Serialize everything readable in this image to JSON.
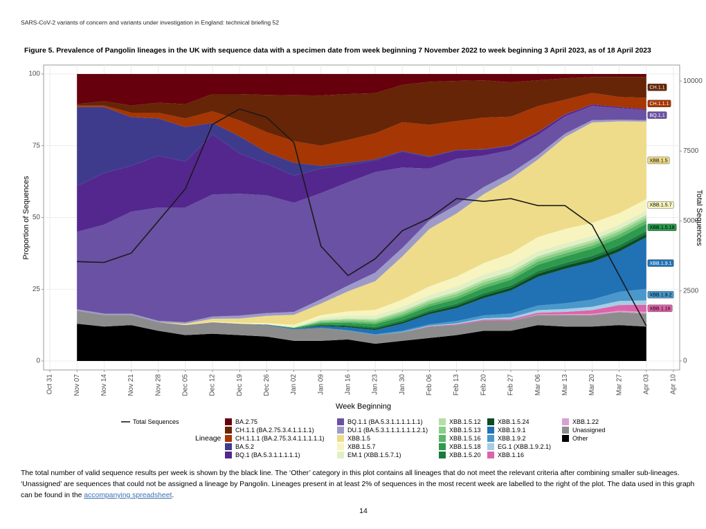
{
  "header": "SARS-CoV-2 variants of concern and variants under investigation in England: technical briefing 52",
  "page_number": "14",
  "caption": {
    "text": "The total number of valid sequence results per week is shown by the black line. The ‘Other’ category in this plot contains all lineages that do not meet the relevant criteria after combining smaller sub-lineages. ‘Unassigned’ are sequences that could not be assigned a lineage by Pangolin. Lineages present in at least 2% of sequences in the most recent week are labelled to the right of the plot. The data used in this graph can be found in the ",
    "link": "accompanying spreadsheet",
    "end": "."
  },
  "chart_data": {
    "type": "area",
    "title": "Figure 5. Prevalence of Pangolin lineages in the UK with sequence data with a specimen date from week beginning 7 November 2022 to week beginning 3 April 2023, as of 18 April 2023",
    "x_label": "Week Beginning",
    "y_label": "Proportion of Sequences",
    "y2_label": "Total Sequences",
    "legend_title": "Lineage",
    "grid": true,
    "categories": [
      "Oct 31",
      "Nov 07",
      "Nov 14",
      "Nov 21",
      "Nov 28",
      "Dec 05",
      "Dec 12",
      "Dec 19",
      "Dec 26",
      "Jan 02",
      "Jan 09",
      "Jan 16",
      "Jan 23",
      "Jan 30",
      "Feb 06",
      "Feb 13",
      "Feb 20",
      "Feb 27",
      "Mar 06",
      "Mar 13",
      "Mar 20",
      "Mar 27",
      "Apr 03",
      "Apr 10"
    ],
    "ylim": [
      0,
      100
    ],
    "yticks": [
      0,
      25,
      50,
      75,
      100
    ],
    "y2lim": [
      0,
      10250
    ],
    "y2ticks": [
      0,
      2500,
      5000,
      7500,
      10000
    ],
    "total_line": {
      "name": "Total Sequences",
      "color": "#1a1a1a",
      "axis": "y2",
      "values": [
        null,
        3550,
        3520,
        3850,
        5000,
        6150,
        8450,
        9000,
        8700,
        7800,
        4100,
        3050,
        3650,
        4650,
        5100,
        5800,
        5700,
        5800,
        5550,
        5550,
        4850,
        3050,
        1250,
        null
      ]
    },
    "series": [
      {
        "name": "BA.2.75",
        "color": "#67000d",
        "values": [
          null,
          10.5,
          9.5,
          11,
          10,
          10.5,
          7,
          7,
          7.3,
          7.4,
          7.5,
          7,
          6.7,
          3.8,
          2.7,
          2.4,
          2.2,
          2.9,
          2.2,
          1.5,
          1,
          1,
          1,
          null
        ]
      },
      {
        "name": "CH.1.1 (BA.2.75.3.4.1.1.1.1)",
        "color": "#662506",
        "end_label": "CH.1.1",
        "values": [
          null,
          0.5,
          1.5,
          2.5,
          3.5,
          5,
          6,
          9.2,
          13,
          16,
          17.5,
          16,
          14,
          13,
          15,
          14,
          13,
          12,
          9,
          7.5,
          5.6,
          7,
          7.3,
          null
        ]
      },
      {
        "name": "CH.1.1.1 (BA.2.75.3.4.1.1.1.1.1)",
        "color": "#a63603",
        "end_label": "CH.1.1.1",
        "values": [
          null,
          0.5,
          0.5,
          1.5,
          2,
          3,
          4,
          5.5,
          7,
          7.5,
          7,
          8,
          9,
          10,
          11,
          10,
          11,
          10,
          9,
          5,
          4,
          3.5,
          4,
          null
        ]
      },
      {
        "name": "BA.5.2",
        "color": "#3f3b8c",
        "values": [
          null,
          27.5,
          23,
          17,
          13,
          12,
          4,
          6,
          4,
          4.5,
          1,
          0.7,
          0.5,
          0.3,
          0.3,
          0.2,
          0.2,
          0.1,
          0.1,
          0.1,
          0,
          0,
          0,
          null
        ]
      },
      {
        "name": "BQ.1 (BA.5.3.1.1.1.1.1)",
        "color": "#54278f",
        "values": [
          null,
          16,
          18,
          16,
          18,
          16,
          21,
          14,
          11,
          9.5,
          8.5,
          6,
          4,
          5.5,
          4,
          3,
          2,
          1.5,
          1,
          0.7,
          0.5,
          0.4,
          0.3,
          null
        ]
      },
      {
        "name": "BQ.1.1 (BA.5.3.1.1.1.1.1.1)",
        "color": "#6a51a3",
        "end_label": "BQ.1.1",
        "values": [
          null,
          27,
          31,
          35.5,
          39.5,
          40,
          42.5,
          42.5,
          41,
          38,
          37,
          36,
          35,
          28,
          18,
          16,
          11,
          8,
          7,
          6,
          5,
          4,
          3.5,
          null
        ]
      },
      {
        "name": "DU.1 (BA.5.3.1.1.1.1.1.1.2.1)",
        "color": "#9e9ac8",
        "values": [
          null,
          0.5,
          0.5,
          0.5,
          0.5,
          0.5,
          0.8,
          1,
          1,
          1,
          1.5,
          2,
          3,
          3,
          3,
          3,
          2.5,
          2,
          1.5,
          1.2,
          0.8,
          0.6,
          0.5,
          null
        ]
      },
      {
        "name": "XBB.1.5",
        "color": "#eedc8a",
        "end_label": "XBB.1.5",
        "values": [
          null,
          0,
          0,
          0,
          0,
          0.5,
          1,
          1.5,
          2.5,
          3.5,
          4,
          7,
          10,
          15,
          20,
          22,
          24,
          26,
          27,
          32,
          35,
          32,
          27,
          null
        ]
      },
      {
        "name": "XBB.1.5.7",
        "color": "#f7f4bf",
        "end_label": "XBB.1.5.7",
        "values": [
          null,
          0,
          0,
          0,
          0,
          0,
          0.2,
          0.3,
          0.5,
          0.5,
          1,
          1.5,
          2,
          2.5,
          3,
          3.5,
          4,
          4.5,
          5,
          5,
          4.5,
          4,
          4,
          null
        ]
      },
      {
        "name": "EM.1 (XBB.1.5.7.1)",
        "color": "#e1f0c4",
        "values": [
          null,
          0,
          0,
          0,
          0,
          0,
          0,
          0,
          0,
          0.5,
          0.7,
          1,
          1.2,
          1.4,
          1.6,
          1.7,
          1.8,
          1.8,
          1.7,
          1.6,
          1.5,
          1.5,
          1.5,
          null
        ]
      },
      {
        "name": "XBB.1.5.12",
        "color": "#b5dfa5",
        "values": [
          null,
          0,
          0,
          0,
          0,
          0,
          0,
          0,
          0,
          0,
          0.3,
          0.4,
          0.5,
          0.6,
          0.7,
          0.8,
          0.9,
          0.9,
          0.9,
          0.9,
          0.9,
          0.9,
          0.9,
          null
        ]
      },
      {
        "name": "XBB.1.5.13",
        "color": "#8acf86",
        "values": [
          null,
          0,
          0,
          0,
          0,
          0,
          0,
          0,
          0,
          0,
          0.5,
          0.6,
          0.7,
          0.8,
          0.9,
          1,
          1,
          1,
          1,
          1,
          1,
          1,
          1,
          null
        ]
      },
      {
        "name": "XBB.1.5.16",
        "color": "#5cb768",
        "values": [
          null,
          0,
          0,
          0,
          0,
          0,
          0,
          0,
          0,
          0,
          0.3,
          0.5,
          0.6,
          0.7,
          0.8,
          0.9,
          1,
          1,
          1.1,
          1.1,
          1.1,
          1.2,
          1.2,
          null
        ]
      },
      {
        "name": "XBB.1.5.18",
        "color": "#2e9a4e",
        "end_label": "XBB.1.5.18",
        "values": [
          null,
          0,
          0,
          0,
          0,
          0,
          0,
          0,
          0,
          0.3,
          0.5,
          0.8,
          1,
          1.2,
          1.4,
          1.6,
          1.8,
          2,
          2.2,
          2.3,
          2.5,
          2.6,
          2.5,
          null
        ]
      },
      {
        "name": "XBB.1.5.20",
        "color": "#1a7a3c",
        "values": [
          null,
          0,
          0,
          0,
          0,
          0,
          0,
          0,
          0,
          0,
          0.3,
          0.4,
          0.5,
          0.6,
          0.6,
          0.7,
          0.8,
          0.8,
          0.9,
          0.9,
          1,
          1,
          1,
          null
        ]
      },
      {
        "name": "XBB.1.5.24",
        "color": "#0b4d24",
        "values": [
          null,
          0,
          0,
          0,
          0,
          0,
          0,
          0,
          0,
          0,
          0.3,
          0.4,
          0.5,
          0.6,
          0.7,
          0.8,
          0.9,
          1,
          1.1,
          1.1,
          1.2,
          1.2,
          1.2,
          null
        ]
      },
      {
        "name": "XBB.1.9.1",
        "color": "#2171b5",
        "end_label": "XBB.1.9.1",
        "values": [
          null,
          0,
          0,
          0,
          0,
          0,
          0,
          0,
          0.2,
          0.3,
          0.6,
          1,
          1.5,
          2.5,
          3.5,
          4.5,
          6,
          8,
          10,
          12,
          13,
          14,
          18,
          null
        ]
      },
      {
        "name": "XBB.1.9.2",
        "color": "#4a98cb",
        "end_label": "XBB.1.9.2",
        "values": [
          null,
          0,
          0,
          0,
          0,
          0,
          0,
          0,
          0,
          0,
          0,
          0.2,
          0.3,
          0.4,
          0.5,
          0.8,
          1,
          1.3,
          1.6,
          2,
          2.5,
          3.2,
          4,
          null
        ]
      },
      {
        "name": "EG.1 (XBB.1.9.2.1)",
        "color": "#a6cde6",
        "values": [
          null,
          0,
          0,
          0,
          0,
          0,
          0,
          0,
          0,
          0,
          0,
          0,
          0,
          0.1,
          0.2,
          0.3,
          0.5,
          0.7,
          0.9,
          1,
          1.2,
          1.4,
          1.5,
          null
        ]
      },
      {
        "name": "XBB.1.16",
        "color": "#dd64a8",
        "end_label": "XBB.1.16",
        "values": [
          null,
          0,
          0,
          0,
          0,
          0,
          0,
          0,
          0,
          0,
          0,
          0,
          0,
          0,
          0.1,
          0.3,
          0.4,
          0.5,
          0.6,
          0.8,
          1.3,
          2,
          2.5,
          null
        ]
      },
      {
        "name": "XBB.1.22",
        "color": "#d9a0d0",
        "values": [
          null,
          0,
          0,
          0,
          0,
          0,
          0,
          0,
          0,
          0,
          0,
          0,
          0,
          0,
          0,
          0,
          0,
          0,
          0.2,
          0.3,
          0.4,
          0.5,
          0.6,
          null
        ]
      },
      {
        "name": "Unassigned",
        "color": "#8c8c8c",
        "values": [
          null,
          4.5,
          4,
          3.5,
          3,
          3.5,
          4,
          4,
          4,
          4,
          4.5,
          3,
          3,
          3,
          4,
          3.5,
          3.5,
          3.5,
          3.5,
          4,
          4,
          4.5,
          4.5,
          null
        ]
      },
      {
        "name": "Other",
        "color": "#000000",
        "values": [
          null,
          13,
          12,
          12.5,
          10.5,
          9,
          9.5,
          9,
          8.5,
          7,
          7,
          7.5,
          6,
          7,
          8,
          9,
          10.5,
          10.5,
          12.5,
          12,
          12,
          12.5,
          12,
          null
        ]
      }
    ]
  }
}
